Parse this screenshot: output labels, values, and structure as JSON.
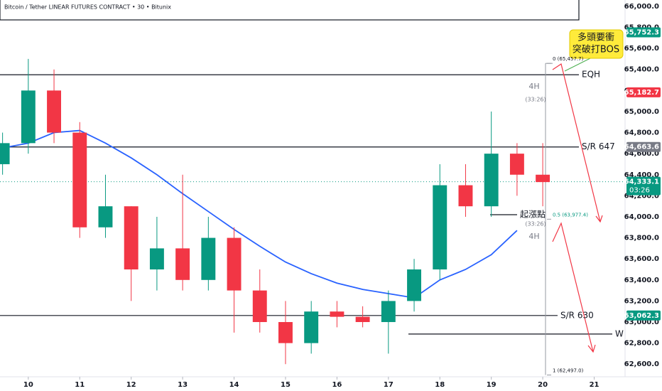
{
  "chart_data": {
    "type": "candlestick",
    "title": "Bitcoin / Tether LINEAR FUTURES CONTRACT • 30 • Bitunix",
    "x": [
      9.5,
      10.0,
      10.5,
      11.0,
      11.5,
      12.0,
      12.5,
      13.0,
      13.5,
      14.0,
      14.5,
      15.0,
      15.5,
      16.0,
      16.5,
      17.0,
      17.5,
      18.0,
      18.5,
      19.0,
      19.5,
      20.0
    ],
    "open": [
      64500,
      64700,
      65200,
      64800,
      63900,
      64100,
      63500,
      63700,
      63400,
      63800,
      63300,
      63000,
      62800,
      63100,
      63050,
      63000,
      63200,
      63500,
      64300,
      64100,
      64600,
      64400
    ],
    "high": [
      64800,
      65500,
      65400,
      64900,
      64400,
      64100,
      64000,
      64400,
      64000,
      63900,
      63500,
      63200,
      63200,
      63200,
      63150,
      63300,
      63600,
      64500,
      64500,
      65000,
      64700,
      64700
    ],
    "low": [
      64400,
      64600,
      64700,
      63800,
      63800,
      63200,
      63300,
      63300,
      63300,
      62900,
      62900,
      62600,
      62700,
      62950,
      62950,
      62700,
      63100,
      63400,
      64000,
      64000,
      64200,
      64100
    ],
    "close": [
      64700,
      65200,
      64800,
      63900,
      64100,
      63500,
      63700,
      63400,
      63800,
      63300,
      63000,
      62800,
      63100,
      63050,
      63000,
      63200,
      63500,
      64300,
      64100,
      64600,
      64400,
      64330
    ],
    "up_color": "#089981",
    "down_color": "#f23645",
    "ma": {
      "color": "#2962ff",
      "x": [
        9.45,
        10.0,
        10.5,
        11.0,
        11.5,
        12.0,
        12.5,
        13.0,
        13.5,
        14.0,
        14.5,
        15.0,
        15.5,
        16.0,
        16.5,
        17.0,
        17.5,
        18.0,
        18.5,
        19.0,
        19.5
      ],
      "values": [
        64650,
        64700,
        64800,
        64820,
        64700,
        64560,
        64400,
        64220,
        64050,
        63880,
        63720,
        63570,
        63460,
        63370,
        63310,
        63270,
        63230,
        63400,
        63500,
        63640,
        63870
      ]
    },
    "xlim": [
      9.45,
      21.6
    ],
    "xticks": [
      10,
      11,
      12,
      13,
      14,
      15,
      16,
      17,
      18,
      19,
      20,
      21
    ],
    "ylim": [
      62480,
      66060
    ],
    "yticks": [
      {
        "value": 66000,
        "label": "66,000.0"
      },
      {
        "value": 65800,
        "label": "65,800.0"
      },
      {
        "value": 65600,
        "label": "65,600.0"
      },
      {
        "value": 65400,
        "label": "65,400.0"
      },
      {
        "value": 65200,
        "label": "65,200.0"
      },
      {
        "value": 65000,
        "label": "65,000.0"
      },
      {
        "value": 64800,
        "label": "64,800.0"
      },
      {
        "value": 64600,
        "label": "64,600.0"
      },
      {
        "value": 64400,
        "label": "64,400.0"
      },
      {
        "value": 64200,
        "label": "64,200.0"
      },
      {
        "value": 64000,
        "label": "64,000.0"
      },
      {
        "value": 63800,
        "label": "63,800.0"
      },
      {
        "value": 63600,
        "label": "63,600.0"
      },
      {
        "value": 63400,
        "label": "63,400.0"
      },
      {
        "value": 63200,
        "label": "63,200.0"
      },
      {
        "value": 63000,
        "label": "63,000.0"
      },
      {
        "value": 62800,
        "label": "62,800.0"
      },
      {
        "value": 62600,
        "label": "62,600.0"
      }
    ],
    "levels": [
      {
        "label": "EQH",
        "value": 65350
      },
      {
        "label": "S/R 647",
        "value": 64663.6
      },
      {
        "label": "起漲點",
        "value": 64020
      },
      {
        "label": "S/R 630",
        "value": 63062.3
      },
      {
        "label": "W",
        "value": 62886
      }
    ],
    "badges": [
      {
        "value": 65752.3,
        "label": "65,752.3",
        "color": "#089981"
      },
      {
        "value": 65182.7,
        "label": "65,182.7",
        "color": "#f23645"
      },
      {
        "value": 64663.6,
        "label": "64,663.6",
        "color": "#787b86"
      },
      {
        "value": 64333.1,
        "label": "64,333.1",
        "sub": "03:26",
        "color": "#089981"
      },
      {
        "value": 63062.3,
        "label": "63,062.3",
        "color": "#089981"
      }
    ],
    "fib": [
      {
        "text": "0 (65,457.7)",
        "value": 65457.7
      },
      {
        "text": "0.5 (63,977.4)",
        "value": 63977.4
      },
      {
        "text": "1 (62,497.0)",
        "value": 62497.0
      }
    ],
    "notes": [
      "4H",
      "(33:26)",
      "(33:26)",
      "4H"
    ],
    "callout": [
      "多頭要衝",
      "突破打BOS"
    ]
  }
}
